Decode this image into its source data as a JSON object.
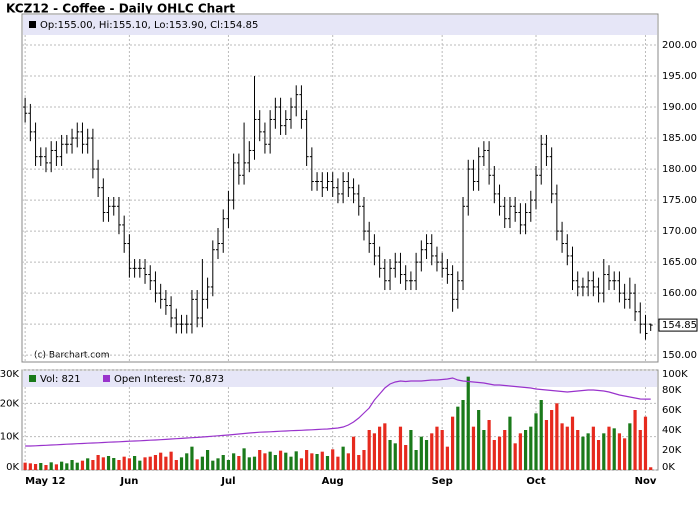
{
  "chart_data": {
    "type": "ohlc",
    "title": "KCZ12 - Coffee - Daily OHLC Chart",
    "header_label": "Op:155.00, Hi:155.10, Lo:153.90, Cl:154.85",
    "last_label": "154.85",
    "watermark": "(c) Barchart.com",
    "color": "#000000",
    "grid": true,
    "xlim": [
      -0.6,
      121.4
    ],
    "xticks": [
      {
        "value": 0,
        "label": "May 12"
      },
      {
        "value": 20,
        "label": "Jun"
      },
      {
        "value": 39,
        "label": "Jul"
      },
      {
        "value": 59,
        "label": "Aug"
      },
      {
        "value": 80,
        "label": "Sep"
      },
      {
        "value": 98,
        "label": "Oct"
      },
      {
        "value": 119,
        "label": "Nov"
      }
    ],
    "ylim": [
      148.9,
      205
    ],
    "yticks": [
      {
        "value": 150,
        "label": "150.00"
      },
      {
        "value": 155,
        "label": "155.00"
      },
      {
        "value": 160,
        "label": "160.00"
      },
      {
        "value": 165,
        "label": "165.00"
      },
      {
        "value": 170,
        "label": "170.00"
      },
      {
        "value": 175,
        "label": "175.00"
      },
      {
        "value": 180,
        "label": "180.00"
      },
      {
        "value": 185,
        "label": "185.00"
      },
      {
        "value": 190,
        "label": "190.00"
      },
      {
        "value": 195,
        "label": "195.00"
      },
      {
        "value": 200,
        "label": "200.00"
      }
    ],
    "ohlc": [
      [
        190,
        191.5,
        187.5,
        189
      ],
      [
        189,
        190.5,
        184.5,
        186
      ],
      [
        186,
        187.5,
        180.5,
        182
      ],
      [
        182,
        183.5,
        180.5,
        182
      ],
      [
        182,
        183.5,
        179.5,
        181
      ],
      [
        181,
        184.5,
        179.5,
        183
      ],
      [
        183,
        184.5,
        180.5,
        182
      ],
      [
        182,
        185.5,
        180.5,
        184
      ],
      [
        184,
        185.5,
        182.5,
        184
      ],
      [
        184,
        186.5,
        182.5,
        185
      ],
      [
        185,
        187.5,
        183.5,
        186
      ],
      [
        186,
        187.5,
        182.5,
        184
      ],
      [
        184,
        186.5,
        182.5,
        185
      ],
      [
        185,
        186.5,
        178.5,
        180
      ],
      [
        180,
        181.5,
        175.5,
        177
      ],
      [
        177,
        178.5,
        171.5,
        173
      ],
      [
        173,
        175.5,
        171.5,
        174
      ],
      [
        174,
        175.5,
        172.5,
        174
      ],
      [
        174,
        175.5,
        169.5,
        171
      ],
      [
        171,
        172.5,
        166.5,
        168
      ],
      [
        168,
        169.5,
        162.5,
        164
      ],
      [
        164,
        165.5,
        162.5,
        164
      ],
      [
        164,
        165.5,
        162.5,
        164
      ],
      [
        164,
        165.5,
        161.5,
        163
      ],
      [
        163,
        164.5,
        160.5,
        162
      ],
      [
        162,
        163.5,
        158.5,
        160
      ],
      [
        160,
        161.5,
        157.5,
        159
      ],
      [
        159,
        160.5,
        156.5,
        158
      ],
      [
        158,
        159.5,
        154.5,
        156
      ],
      [
        156,
        157.5,
        153.5,
        155
      ],
      [
        155,
        156.5,
        153.5,
        155
      ],
      [
        155,
        156.5,
        153.5,
        155
      ],
      [
        155,
        160.5,
        153.5,
        159
      ],
      [
        159,
        160.5,
        154.5,
        156
      ],
      [
        156,
        165.5,
        154.5,
        159
      ],
      [
        159,
        162.5,
        157.5,
        161
      ],
      [
        161,
        168.5,
        159.5,
        167
      ],
      [
        167,
        170.5,
        165.5,
        168
      ],
      [
        168,
        173.5,
        166.5,
        172
      ],
      [
        172,
        176.5,
        170.5,
        175
      ],
      [
        175,
        182.5,
        173.5,
        181
      ],
      [
        181,
        182.5,
        177.5,
        179
      ],
      [
        179,
        187.5,
        177.5,
        181
      ],
      [
        181,
        184.5,
        179.5,
        183
      ],
      [
        183,
        195,
        181.5,
        188
      ],
      [
        188,
        189.5,
        184.5,
        186
      ],
      [
        186,
        187.5,
        182.5,
        184
      ],
      [
        184,
        189.5,
        182.5,
        188
      ],
      [
        188,
        191.5,
        186.5,
        190
      ],
      [
        190,
        191.5,
        185.5,
        187
      ],
      [
        187,
        189.5,
        185.5,
        188
      ],
      [
        188,
        191.5,
        186.5,
        190
      ],
      [
        190,
        193.5,
        188.5,
        192
      ],
      [
        192,
        193.5,
        186.5,
        188
      ],
      [
        188,
        189.5,
        180.5,
        182
      ],
      [
        182,
        183.5,
        176.5,
        178
      ],
      [
        178,
        179.5,
        176.5,
        178
      ],
      [
        178,
        179.5,
        175.5,
        177
      ],
      [
        177,
        179.5,
        176.5,
        178
      ],
      [
        178,
        179.5,
        175.5,
        177
      ],
      [
        177,
        178.5,
        174.5,
        176
      ],
      [
        176,
        179.5,
        174.5,
        178
      ],
      [
        178,
        179.5,
        175.5,
        177
      ],
      [
        177,
        178.5,
        174.5,
        176
      ],
      [
        176,
        177.5,
        172.5,
        174
      ],
      [
        174,
        175.5,
        168.5,
        170
      ],
      [
        170,
        171.5,
        166.5,
        168
      ],
      [
        168,
        169.5,
        164.5,
        166
      ],
      [
        166,
        167.5,
        162.5,
        164
      ],
      [
        164,
        165.5,
        160.5,
        162
      ],
      [
        162,
        165.5,
        160.5,
        164
      ],
      [
        164,
        166.5,
        162.5,
        165
      ],
      [
        165,
        166.5,
        161.5,
        163
      ],
      [
        163,
        164.5,
        160.5,
        162
      ],
      [
        162,
        163.5,
        160.5,
        162
      ],
      [
        162,
        166.5,
        160.5,
        165
      ],
      [
        165,
        168.5,
        163.5,
        167
      ],
      [
        167,
        169.5,
        165.5,
        168
      ],
      [
        168,
        169.5,
        164.5,
        166
      ],
      [
        166,
        167.5,
        163.5,
        165
      ],
      [
        165,
        166.5,
        162.5,
        164
      ],
      [
        164,
        165.5,
        161.5,
        163
      ],
      [
        163,
        164.5,
        157,
        159
      ],
      [
        159,
        163.5,
        157.5,
        162
      ],
      [
        162,
        175.5,
        160.5,
        174
      ],
      [
        174,
        181.5,
        172.5,
        180
      ],
      [
        180,
        181.5,
        176.5,
        178
      ],
      [
        178,
        183.5,
        176.5,
        182
      ],
      [
        182,
        184.5,
        180.5,
        183
      ],
      [
        183,
        184.5,
        177.5,
        179
      ],
      [
        179,
        180.5,
        174.5,
        176
      ],
      [
        176,
        177.5,
        172.5,
        174
      ],
      [
        174,
        175.5,
        170.5,
        172
      ],
      [
        172,
        175.5,
        170.5,
        174
      ],
      [
        174,
        175.5,
        171.5,
        173
      ],
      [
        173,
        174.5,
        169.5,
        171
      ],
      [
        171,
        174.5,
        169.5,
        173
      ],
      [
        173,
        176.5,
        171.5,
        175
      ],
      [
        175,
        180.5,
        173.5,
        179
      ],
      [
        179,
        185.5,
        177.5,
        184
      ],
      [
        184,
        185.5,
        180.5,
        182
      ],
      [
        182,
        183.5,
        174.5,
        176
      ],
      [
        176,
        177.5,
        168.5,
        170
      ],
      [
        170,
        171.5,
        166.5,
        168
      ],
      [
        168,
        169.5,
        164.5,
        166
      ],
      [
        166,
        167.5,
        160.5,
        162
      ],
      [
        162,
        163.5,
        159.5,
        161
      ],
      [
        161,
        162.5,
        159.5,
        161
      ],
      [
        161,
        163.5,
        159.5,
        162
      ],
      [
        162,
        163.5,
        159.5,
        161
      ],
      [
        161,
        162.5,
        158.5,
        160
      ],
      [
        160,
        165.5,
        158.5,
        163
      ],
      [
        163,
        164.5,
        160.5,
        162
      ],
      [
        162,
        163.5,
        160.5,
        162
      ],
      [
        162,
        163.5,
        158.5,
        160
      ],
      [
        160,
        161.5,
        157.5,
        159
      ],
      [
        159,
        162.5,
        157.5,
        160
      ],
      [
        160,
        161.5,
        155.5,
        157
      ],
      [
        157,
        158.5,
        153.5,
        155
      ],
      [
        155,
        156.5,
        152.5,
        153.5
      ],
      [
        155,
        155.1,
        153.9,
        154.85
      ]
    ],
    "volume": {
      "name": "Vol: 821",
      "up_color": "#1a7a1a",
      "down_color": "#e62a1e",
      "ylim": [
        0,
        30000
      ],
      "yticks": [
        {
          "value": 0,
          "label": "0K"
        },
        {
          "value": 10000,
          "label": "10K"
        },
        {
          "value": 20000,
          "label": "20K"
        },
        {
          "value": 30000,
          "label": "30K"
        }
      ],
      "values": [
        2200,
        2000,
        1800,
        2100,
        1500,
        2300,
        1700,
        2500,
        2000,
        3000,
        2200,
        2800,
        3500,
        3000,
        4500,
        3800,
        4200,
        3600,
        3000,
        4000,
        3500,
        4200,
        2800,
        3800,
        4000,
        4500,
        5200,
        4000,
        5500,
        3000,
        3800,
        5000,
        7000,
        3200,
        4000,
        6000,
        2800,
        3500,
        4500,
        3000,
        5000,
        4200,
        6500,
        3800,
        4000,
        6000,
        5000,
        5500,
        4500,
        5800,
        5200,
        4000,
        5600,
        3500,
        6000,
        5000,
        4800,
        5500,
        4200,
        6200,
        4000,
        7000,
        5000,
        10000,
        4500,
        6000,
        12000,
        11000,
        13000,
        14000,
        9000,
        8000,
        13000,
        7500,
        12000,
        6000,
        10000,
        9000,
        11000,
        13000,
        12000,
        7000,
        16000,
        19000,
        21000,
        28000,
        13000,
        18000,
        12000,
        15000,
        9000,
        10000,
        12000,
        16000,
        8000,
        11000,
        12000,
        13000,
        17000,
        21000,
        15000,
        18000,
        20000,
        14000,
        13000,
        16000,
        12000,
        10000,
        11000,
        13000,
        9000,
        11000,
        13000,
        12500,
        11000,
        9500,
        14000,
        18000,
        12000,
        16000,
        821
      ]
    },
    "open_interest": {
      "name": "Open Interest: 70,873",
      "color": "#9933cc",
      "ylim": [
        0,
        100000
      ],
      "yticks": [
        {
          "value": 0,
          "label": "0K"
        },
        {
          "value": 20000,
          "label": "20K"
        },
        {
          "value": 40000,
          "label": "40K"
        },
        {
          "value": 60000,
          "label": "60K"
        },
        {
          "value": 80000,
          "label": "80K"
        },
        {
          "value": 100000,
          "label": "100K"
        }
      ],
      "values": [
        24000,
        24000,
        24200,
        24500,
        24700,
        25000,
        25200,
        25500,
        25800,
        26000,
        26300,
        26500,
        26800,
        27000,
        27200,
        27500,
        27800,
        28000,
        28200,
        28500,
        28800,
        29000,
        29200,
        29500,
        29800,
        30000,
        30300,
        30600,
        31000,
        31300,
        31600,
        32000,
        32300,
        32600,
        33000,
        33400,
        33800,
        34200,
        34600,
        35000,
        35500,
        36000,
        36500,
        37000,
        37400,
        37800,
        38000,
        38200,
        38500,
        38800,
        39000,
        39300,
        39500,
        39700,
        40000,
        40200,
        40500,
        40800,
        41000,
        41500,
        42000,
        43000,
        45000,
        48000,
        52000,
        57000,
        62000,
        70000,
        76000,
        82000,
        86000,
        88000,
        89000,
        88500,
        89000,
        89000,
        89000,
        89500,
        90000,
        90000,
        90500,
        91000,
        92000,
        90000,
        89000,
        88500,
        88000,
        87500,
        87000,
        86000,
        85000,
        85000,
        84500,
        84000,
        83500,
        83000,
        82500,
        82000,
        81000,
        80500,
        80000,
        79500,
        79000,
        78500,
        78000,
        78500,
        79000,
        79500,
        80000,
        80000,
        79500,
        79000,
        78000,
        76500,
        75000,
        74000,
        73000,
        72000,
        71000,
        70900,
        70873
      ]
    }
  }
}
